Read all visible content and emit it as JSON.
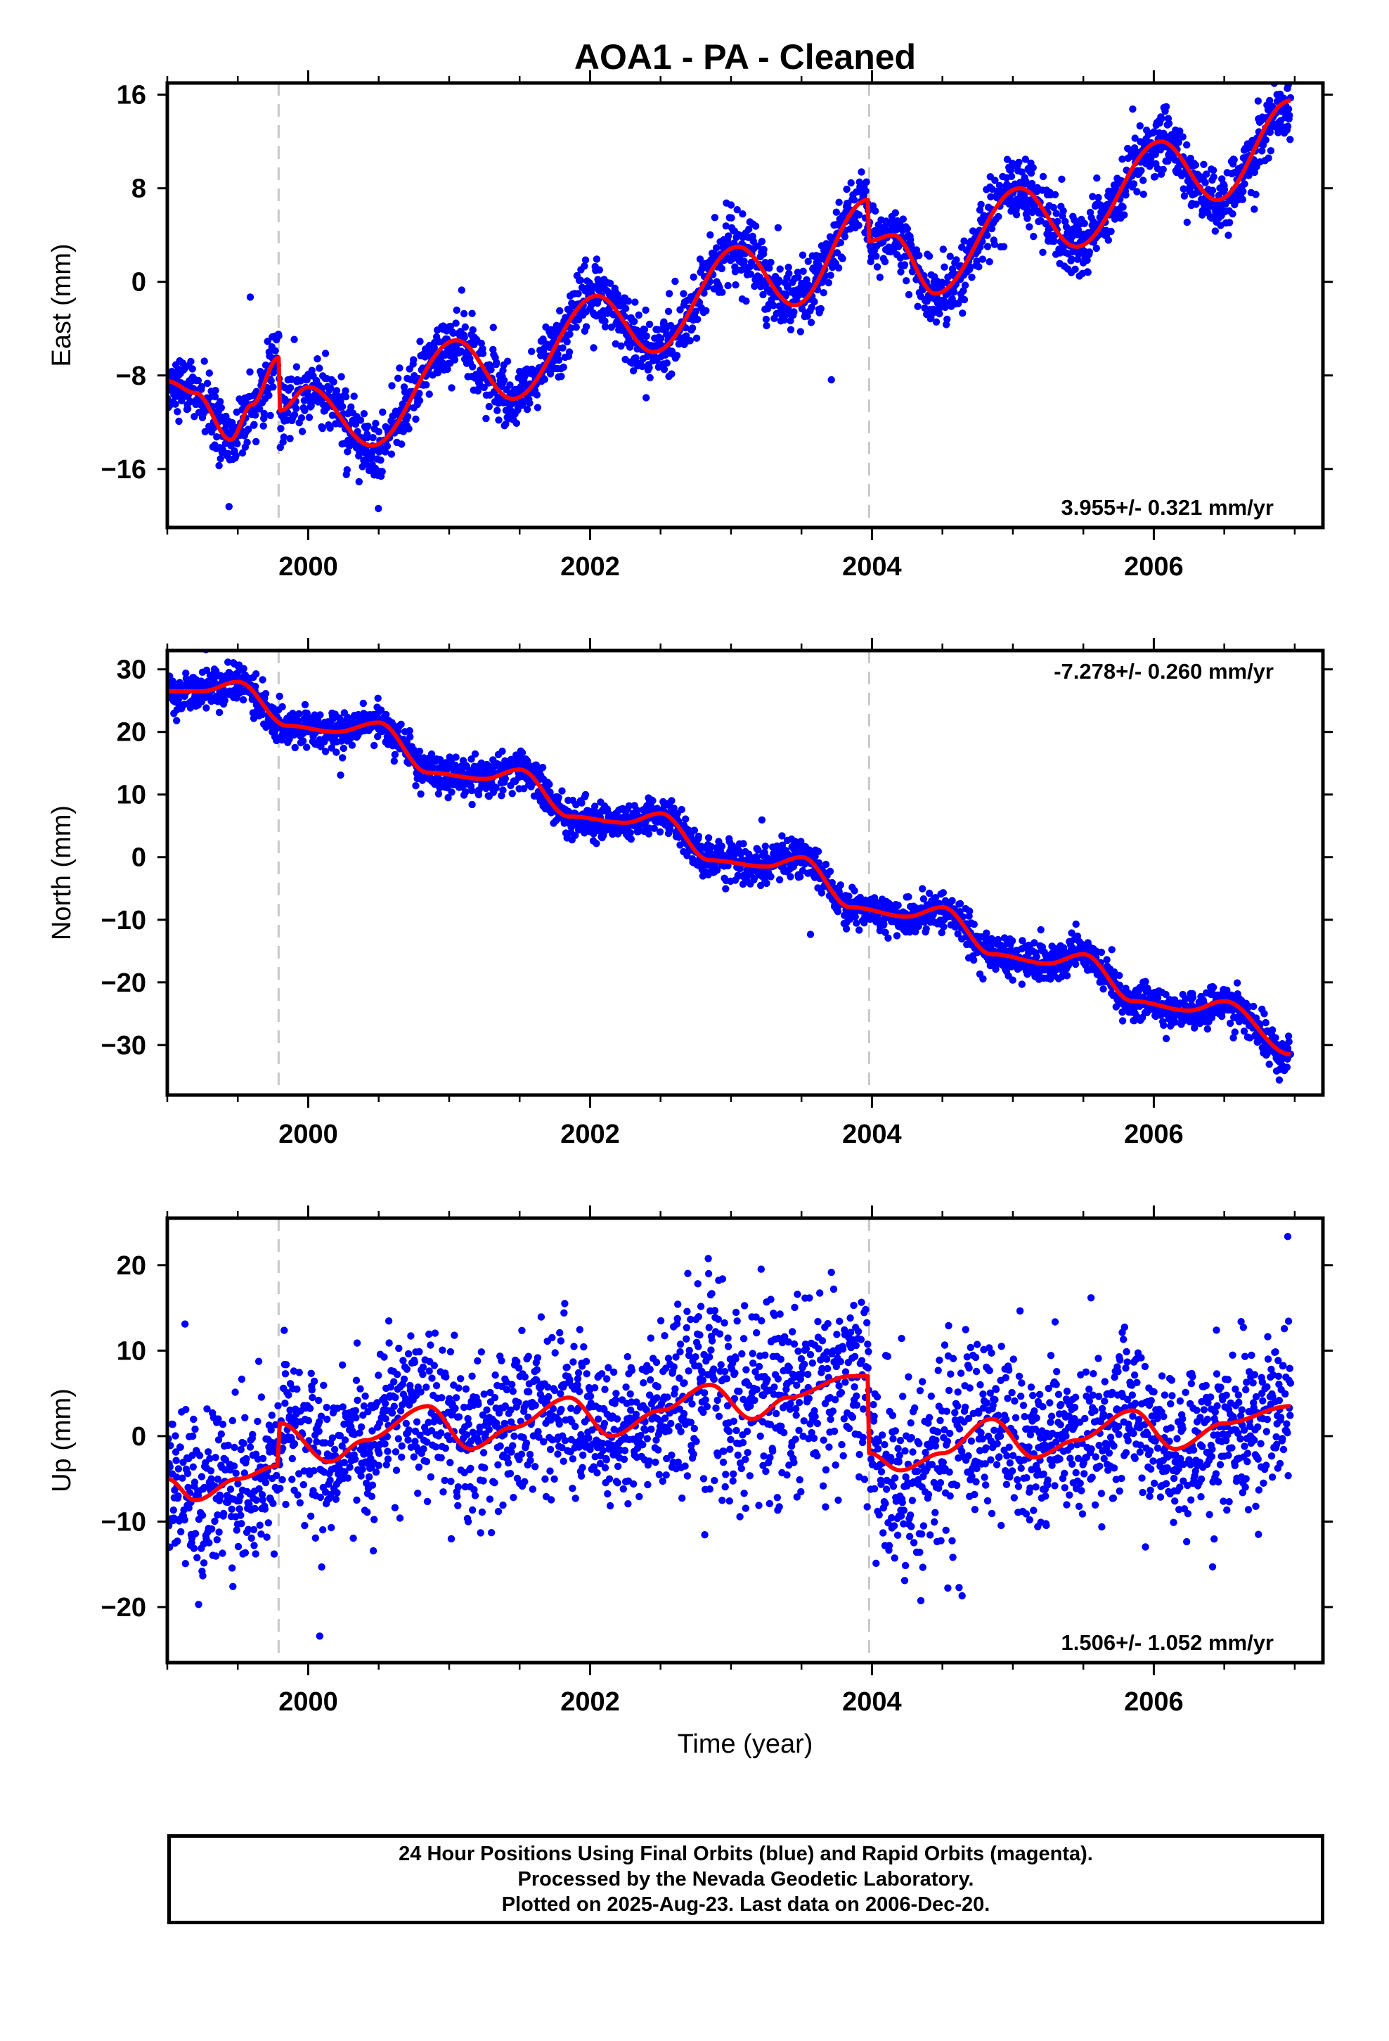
{
  "chart_data": {
    "title": "AOA1  - PA - Cleaned",
    "type": "scatter",
    "x_axis": {
      "label": "Time (year)",
      "range": [
        1999.0,
        2007.2
      ],
      "ticks": [
        2000,
        2002,
        2004,
        2006
      ],
      "tick_labels": [
        "2000",
        "2002",
        "2004",
        "2006"
      ]
    },
    "data_span": [
      1999.0,
      2006.97
    ],
    "offset_epochs": [
      1999.79,
      2003.98
    ],
    "series_styles": {
      "observations": {
        "name": "24 Hour Positions (Final Orbits)",
        "color": "#0000ff"
      },
      "model": {
        "name": "Model fit",
        "color": "#ff0000"
      },
      "offsets": {
        "color": "#c8c8c8"
      }
    },
    "panels": [
      {
        "component": "East",
        "ylabel": "East (mm)",
        "ylim": [
          -21,
          17
        ],
        "yticks": [
          16,
          8,
          0,
          -8,
          -16
        ],
        "ytick_labels": [
          "16",
          "8",
          "0",
          "−8",
          "−16"
        ],
        "rate_label": "3.955+/- 0.321 mm/yr",
        "rate_position": "bottom-right",
        "model": {
          "x": [
            1999.0,
            1999.2,
            1999.45,
            1999.6,
            1999.79,
            1999.8,
            2000.0,
            2000.45,
            2001.05,
            2001.45,
            2002.05,
            2002.45,
            2003.05,
            2003.45,
            2003.97,
            2003.98,
            2004.15,
            2004.45,
            2005.05,
            2005.45,
            2006.05,
            2006.45,
            2006.97
          ],
          "y": [
            -8.5,
            -9.5,
            -13.5,
            -10.5,
            -6.5,
            -11,
            -9,
            -14,
            -5,
            -10,
            -1.2,
            -6,
            3,
            -2,
            7,
            3.5,
            4,
            -1,
            8,
            3,
            12,
            7,
            15.5
          ]
        },
        "scatter_sd": 1.4
      },
      {
        "component": "North",
        "ylabel": "North (mm)",
        "ylim": [
          -38,
          33
        ],
        "yticks": [
          30,
          20,
          10,
          0,
          -10,
          -20,
          -30
        ],
        "ytick_labels": [
          "30",
          "20",
          "10",
          "0",
          "−10",
          "−20",
          "−30"
        ],
        "rate_label": "-7.278+/- 0.260 mm/yr",
        "rate_position": "top-right",
        "model": {
          "x": [
            1999.0,
            1999.25,
            1999.5,
            1999.85,
            2000.2,
            2000.5,
            2000.85,
            2001.25,
            2001.5,
            2001.85,
            2002.25,
            2002.5,
            2002.85,
            2003.25,
            2003.5,
            2003.85,
            2004.25,
            2004.5,
            2004.85,
            2005.25,
            2005.5,
            2005.85,
            2006.25,
            2006.5,
            2006.97
          ],
          "y": [
            26.5,
            26.5,
            28,
            21,
            20,
            21.5,
            13.5,
            12.5,
            14,
            6.5,
            5.5,
            7,
            -0.5,
            -1.5,
            0,
            -8,
            -9.5,
            -8,
            -15.5,
            -17,
            -15.5,
            -23,
            -24.5,
            -23,
            -31.5
          ]
        },
        "scatter_sd": 1.5
      },
      {
        "component": "Up",
        "ylabel": "Up (mm)",
        "ylim": [
          -26.5,
          25.5
        ],
        "yticks": [
          20,
          10,
          0,
          -10,
          -20
        ],
        "ytick_labels": [
          "20",
          "10",
          "0",
          "−10",
          "−20"
        ],
        "rate_label": "1.506+/- 1.052 mm/yr",
        "rate_position": "bottom-right",
        "model": {
          "x": [
            1999.0,
            1999.2,
            1999.5,
            1999.78,
            1999.8,
            2000.15,
            2000.4,
            2000.85,
            2001.15,
            2001.45,
            2001.85,
            2002.15,
            2002.5,
            2002.85,
            2003.15,
            2003.4,
            2003.85,
            2003.97,
            2003.98,
            2004.2,
            2004.5,
            2004.85,
            2005.15,
            2005.45,
            2005.85,
            2006.15,
            2006.5,
            2006.97
          ],
          "y": [
            -5,
            -7.5,
            -5,
            -3.5,
            1.5,
            -3,
            -0.5,
            3.5,
            -1.5,
            1,
            4.5,
            0,
            3,
            6,
            2,
            4.5,
            7,
            7,
            -2,
            -4,
            -2,
            2,
            -2.5,
            -0.5,
            3,
            -1.5,
            1.5,
            3.5
          ]
        },
        "scatter_sd": 4.5,
        "scatter_sd_2003": 6
      }
    ]
  },
  "caption": {
    "line1": "24 Hour Positions Using Final Orbits (blue) and Rapid Orbits (magenta).",
    "line2": "Processed by the Nevada Geodetic Laboratory.",
    "line3": "Plotted on 2025-Aug-23. Last data on 2006-Dec-20."
  }
}
